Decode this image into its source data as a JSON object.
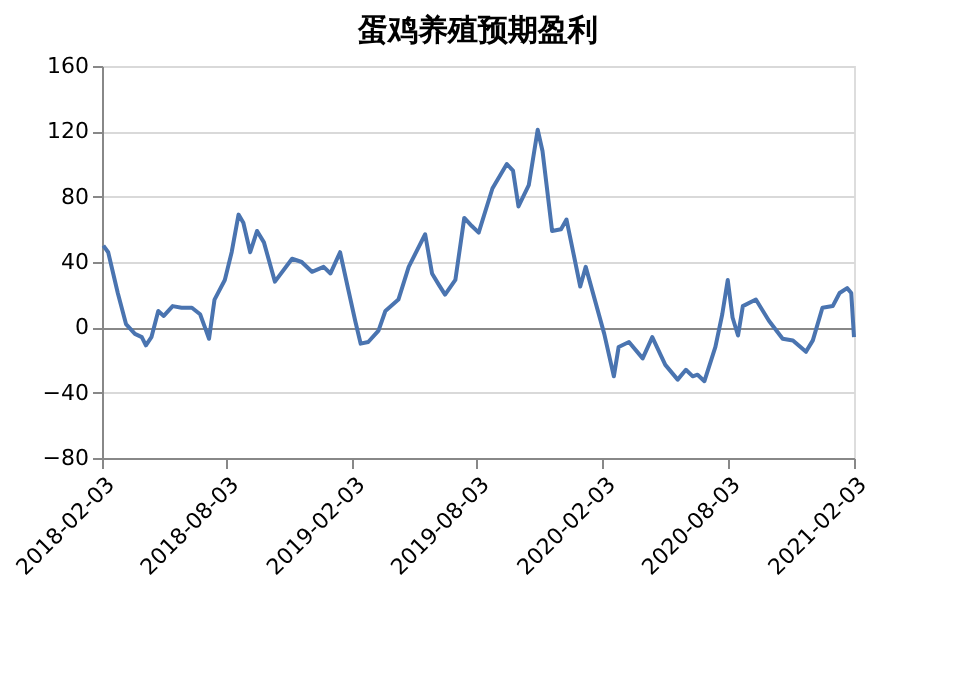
{
  "chart_data": {
    "type": "line",
    "title": "蛋鸡养殖预期盈利",
    "x": [
      "2018-02-05",
      "2018-02-12",
      "2018-02-26",
      "2018-03-10",
      "2018-03-23",
      "2018-04-02",
      "2018-04-08",
      "2018-04-16",
      "2018-04-26",
      "2018-05-04",
      "2018-05-17",
      "2018-05-30",
      "2018-06-14",
      "2018-06-26",
      "2018-07-03",
      "2018-07-09",
      "2018-07-17",
      "2018-08-01",
      "2018-08-11",
      "2018-08-21",
      "2018-08-28",
      "2018-09-07",
      "2018-09-17",
      "2018-09-27",
      "2018-10-13",
      "2018-11-07",
      "2018-11-21",
      "2018-12-06",
      "2018-12-23",
      "2019-01-02",
      "2019-01-16",
      "2019-01-28",
      "2019-02-07",
      "2019-02-15",
      "2019-02-26",
      "2019-03-13",
      "2019-03-23",
      "2019-04-11",
      "2019-04-26",
      "2019-05-20",
      "2019-05-30",
      "2019-06-09",
      "2019-06-18",
      "2019-07-03",
      "2019-07-16",
      "2019-07-27",
      "2019-08-06",
      "2019-08-26",
      "2019-09-16",
      "2019-09-25",
      "2019-10-03",
      "2019-10-18",
      "2019-10-31",
      "2019-11-07",
      "2019-11-21",
      "2019-12-04",
      "2019-12-12",
      "2020-01-01",
      "2020-01-09",
      "2020-02-05",
      "2020-02-19",
      "2020-02-26",
      "2020-03-12",
      "2020-04-01",
      "2020-04-15",
      "2020-05-04",
      "2020-05-22",
      "2020-06-03",
      "2020-06-13",
      "2020-06-20",
      "2020-06-30",
      "2020-07-16",
      "2020-07-26",
      "2020-08-03",
      "2020-08-10",
      "2020-08-18",
      "2020-08-25",
      "2020-09-13",
      "2020-10-02",
      "2020-10-22",
      "2020-11-06",
      "2020-11-25",
      "2020-12-05",
      "2020-12-19",
      "2021-01-03",
      "2021-01-13",
      "2021-01-24",
      "2021-01-30",
      "2021-02-03"
    ],
    "series": [
      {
        "color": "#4a74b0",
        "values": [
          50,
          46,
          21,
          2,
          -4,
          -6,
          -11,
          -6,
          10,
          7,
          13,
          12,
          12,
          8,
          0,
          -7,
          17,
          29,
          46,
          69,
          64,
          46,
          59,
          52,
          28,
          42,
          40,
          34,
          37,
          33,
          46,
          23,
          4,
          -10,
          -9,
          -2,
          10,
          17,
          37,
          57,
          33,
          26,
          20,
          29,
          67,
          62,
          58,
          85,
          100,
          96,
          74,
          87,
          121,
          108,
          59,
          60,
          66,
          25,
          37,
          -4,
          -30,
          -12,
          -9,
          -19,
          -6,
          -23,
          -32,
          -26,
          -30,
          -29,
          -33,
          -12,
          8,
          29,
          6,
          -5,
          13,
          17,
          4,
          -7,
          -8,
          -15,
          -8,
          12,
          13,
          21,
          24,
          21,
          -6
        ]
      }
    ],
    "xlim": [
      "2018-02-03",
      "2021-02-03"
    ],
    "xticks": [
      "2018-02-03",
      "2018-08-03",
      "2019-02-03",
      "2019-08-03",
      "2020-02-03",
      "2020-08-03",
      "2021-02-03"
    ],
    "ylim": [
      -80,
      160
    ],
    "yticks": [
      -80,
      -40,
      0,
      40,
      80,
      120,
      160
    ],
    "grid": "y",
    "line_style": "solid",
    "marker": "none"
  }
}
